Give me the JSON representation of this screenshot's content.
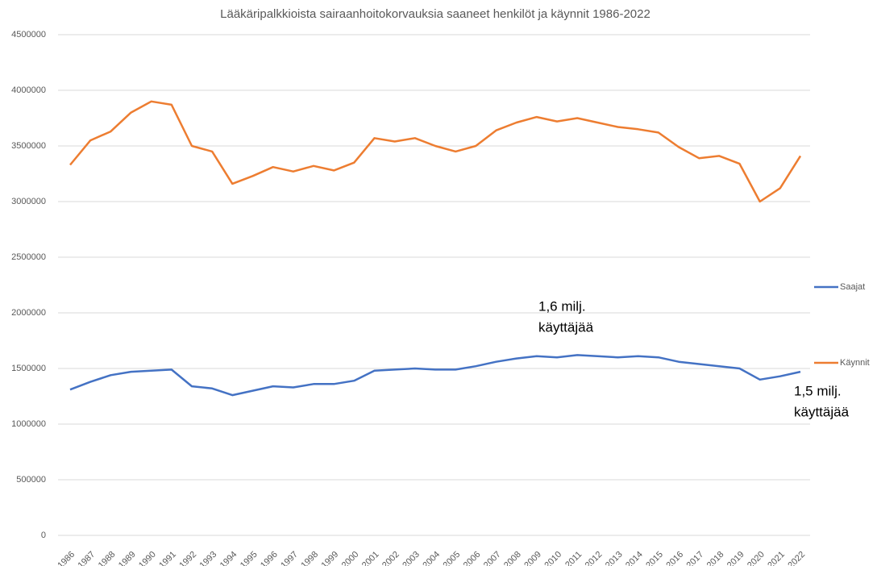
{
  "chart_data": {
    "type": "line",
    "title": "Lääkäripalkkioista sairaanhoitokorvauksia saaneet henkilöt ja käynnit 1986-2022",
    "categories": [
      "1986",
      "1987",
      "1988",
      "1989",
      "1990",
      "1991",
      "1992",
      "1993",
      "1994",
      "1995",
      "1996",
      "1997",
      "1998",
      "1999",
      "2000",
      "2001",
      "2002",
      "2003",
      "2004",
      "2005",
      "2006",
      "2007",
      "2008",
      "2009",
      "2010",
      "2011",
      "2012",
      "2013",
      "2014",
      "2015",
      "2016",
      "2017",
      "2018",
      "2019",
      "2020",
      "2021",
      "2022"
    ],
    "series": [
      {
        "name": "Saajat",
        "color": "#4472c4",
        "values": [
          1310000,
          1380000,
          1440000,
          1470000,
          1480000,
          1490000,
          1340000,
          1320000,
          1260000,
          1300000,
          1340000,
          1330000,
          1360000,
          1360000,
          1390000,
          1480000,
          1490000,
          1500000,
          1490000,
          1490000,
          1520000,
          1560000,
          1590000,
          1610000,
          1600000,
          1620000,
          1610000,
          1600000,
          1610000,
          1600000,
          1560000,
          1540000,
          1520000,
          1500000,
          1400000,
          1430000,
          1470000
        ]
      },
      {
        "name": "Käynnit",
        "color": "#ed7d31",
        "values": [
          3330000,
          3550000,
          3630000,
          3800000,
          3900000,
          3870000,
          3500000,
          3450000,
          3160000,
          3230000,
          3310000,
          3270000,
          3320000,
          3280000,
          3350000,
          3570000,
          3540000,
          3570000,
          3500000,
          3450000,
          3500000,
          3640000,
          3710000,
          3760000,
          3720000,
          3750000,
          3710000,
          3670000,
          3650000,
          3620000,
          3490000,
          3390000,
          3410000,
          3340000,
          3000000,
          3120000,
          3410000
        ]
      }
    ],
    "ylim": [
      0,
      4500000
    ],
    "yticks": [
      0,
      500000,
      1000000,
      1500000,
      2000000,
      2500000,
      3000000,
      3500000,
      4000000,
      4500000
    ],
    "grid": true,
    "legend": "right",
    "annotations": [
      {
        "lines": [
          "1,6 milj.",
          "käyttäjää"
        ]
      },
      {
        "lines": [
          "1,5 milj.",
          "käyttäjää"
        ]
      }
    ]
  }
}
